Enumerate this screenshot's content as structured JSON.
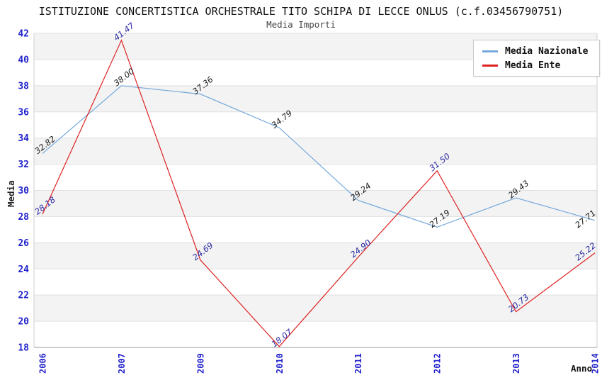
{
  "chart_data": {
    "type": "line",
    "title": "ISTITUZIONE CONCERTISTICA ORCHESTRALE TITO SCHIPA DI LECCE ONLUS (c.f.03456790751)",
    "subtitle": "Media Importi",
    "xlabel": "Anno",
    "ylabel": "Media",
    "categories": [
      "2006",
      "2007",
      "2009",
      "2010",
      "2011",
      "2012",
      "2013",
      "2014"
    ],
    "series": [
      {
        "name": "Media Nazionale",
        "color": "#74a9dc",
        "label_color": "#1a1a1a",
        "values": [
          32.82,
          38.0,
          37.36,
          34.79,
          29.24,
          27.19,
          29.43,
          27.71
        ]
      },
      {
        "name": "Media Ente",
        "color": "#dd2222",
        "label_color": "#2929a3",
        "values": [
          28.18,
          41.47,
          24.69,
          18.07,
          24.9,
          31.5,
          20.73,
          25.22
        ]
      }
    ],
    "ylim": [
      18,
      42
    ],
    "ytick_step": 2,
    "yticks": [
      18,
      20,
      22,
      24,
      26,
      28,
      30,
      32,
      34,
      36,
      38,
      40,
      42
    ],
    "grid": true,
    "legend_position": "top-right",
    "band_colors": [
      "#ffffff",
      "#f3f3f3"
    ],
    "gridline_color": "#e0e0e0",
    "plot_border_color": "#cfcfcf",
    "axis_line_color": "#999999",
    "axis_tick_color": "#2222cc"
  }
}
